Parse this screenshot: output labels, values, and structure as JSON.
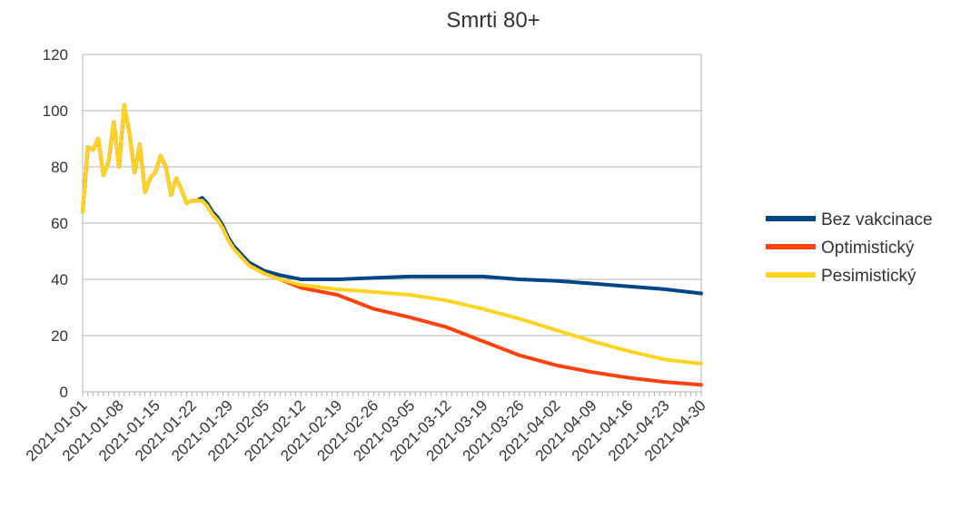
{
  "chart_data": {
    "type": "line",
    "title": "Smrti 80+",
    "xlabel": "",
    "ylabel": "",
    "x_start": "2021-01-01",
    "x_end": "2021-04-30",
    "ylim": [
      0,
      120
    ],
    "yticks": [
      0,
      20,
      40,
      60,
      80,
      100,
      120
    ],
    "xticks": [
      "2021-01-01",
      "2021-01-08",
      "2021-01-15",
      "2021-01-22",
      "2021-01-29",
      "2021-02-05",
      "2021-02-12",
      "2021-02-19",
      "2021-02-26",
      "2021-03-05",
      "2021-03-12",
      "2021-03-19",
      "2021-03-26",
      "2021-04-02",
      "2021-04-09",
      "2021-04-16",
      "2021-04-23",
      "2021-04-30"
    ],
    "grid": true,
    "legend_position": "right",
    "series": [
      {
        "name": "Bez vakcinace",
        "color": "#004586",
        "points": [
          [
            "2021-01-01",
            64
          ],
          [
            "2021-01-02",
            87
          ],
          [
            "2021-01-03",
            86
          ],
          [
            "2021-01-04",
            90
          ],
          [
            "2021-01-05",
            77
          ],
          [
            "2021-01-06",
            82
          ],
          [
            "2021-01-07",
            96
          ],
          [
            "2021-01-08",
            80
          ],
          [
            "2021-01-09",
            102
          ],
          [
            "2021-01-10",
            92
          ],
          [
            "2021-01-11",
            78
          ],
          [
            "2021-01-12",
            88
          ],
          [
            "2021-01-13",
            71
          ],
          [
            "2021-01-14",
            76
          ],
          [
            "2021-01-15",
            78
          ],
          [
            "2021-01-16",
            84
          ],
          [
            "2021-01-17",
            80
          ],
          [
            "2021-01-18",
            70
          ],
          [
            "2021-01-19",
            76
          ],
          [
            "2021-01-20",
            72
          ],
          [
            "2021-01-21",
            67
          ],
          [
            "2021-01-22",
            68
          ],
          [
            "2021-01-23",
            68
          ],
          [
            "2021-01-24",
            69
          ],
          [
            "2021-01-25",
            67
          ],
          [
            "2021-01-26",
            64
          ],
          [
            "2021-01-27",
            62
          ],
          [
            "2021-01-28",
            59
          ],
          [
            "2021-01-29",
            55
          ],
          [
            "2021-01-30",
            52
          ],
          [
            "2021-01-31",
            50
          ],
          [
            "2021-02-01",
            48
          ],
          [
            "2021-02-02",
            46
          ],
          [
            "2021-02-03",
            45
          ],
          [
            "2021-02-05",
            43
          ],
          [
            "2021-02-08",
            41.5
          ],
          [
            "2021-02-12",
            40
          ],
          [
            "2021-02-19",
            40
          ],
          [
            "2021-02-26",
            40.5
          ],
          [
            "2021-03-05",
            41
          ],
          [
            "2021-03-19",
            41
          ],
          [
            "2021-03-26",
            40
          ],
          [
            "2021-04-02",
            39.5
          ],
          [
            "2021-04-09",
            38.5
          ],
          [
            "2021-04-16",
            37.5
          ],
          [
            "2021-04-23",
            36.5
          ],
          [
            "2021-04-30",
            35
          ]
        ]
      },
      {
        "name": "Optimistický",
        "color": "#ff420e",
        "points": [
          [
            "2021-01-01",
            64
          ],
          [
            "2021-01-02",
            87
          ],
          [
            "2021-01-03",
            86
          ],
          [
            "2021-01-04",
            90
          ],
          [
            "2021-01-05",
            77
          ],
          [
            "2021-01-06",
            82
          ],
          [
            "2021-01-07",
            96
          ],
          [
            "2021-01-08",
            80
          ],
          [
            "2021-01-09",
            102
          ],
          [
            "2021-01-10",
            92
          ],
          [
            "2021-01-11",
            78
          ],
          [
            "2021-01-12",
            88
          ],
          [
            "2021-01-13",
            71
          ],
          [
            "2021-01-14",
            76
          ],
          [
            "2021-01-15",
            78
          ],
          [
            "2021-01-16",
            84
          ],
          [
            "2021-01-17",
            80
          ],
          [
            "2021-01-18",
            70
          ],
          [
            "2021-01-19",
            76
          ],
          [
            "2021-01-20",
            72
          ],
          [
            "2021-01-21",
            67
          ],
          [
            "2021-01-22",
            68
          ],
          [
            "2021-01-23",
            68
          ],
          [
            "2021-01-24",
            68
          ],
          [
            "2021-01-25",
            66
          ],
          [
            "2021-01-26",
            63
          ],
          [
            "2021-01-27",
            61
          ],
          [
            "2021-01-28",
            58
          ],
          [
            "2021-01-29",
            54
          ],
          [
            "2021-01-30",
            51
          ],
          [
            "2021-01-31",
            49
          ],
          [
            "2021-02-01",
            47
          ],
          [
            "2021-02-02",
            45
          ],
          [
            "2021-02-03",
            44
          ],
          [
            "2021-02-05",
            42
          ],
          [
            "2021-02-08",
            40
          ],
          [
            "2021-02-12",
            37
          ],
          [
            "2021-02-19",
            34.5
          ],
          [
            "2021-02-26",
            29.5
          ],
          [
            "2021-03-05",
            26.5
          ],
          [
            "2021-03-12",
            23
          ],
          [
            "2021-03-19",
            18
          ],
          [
            "2021-03-26",
            13
          ],
          [
            "2021-04-02",
            9.5
          ],
          [
            "2021-04-09",
            7
          ],
          [
            "2021-04-16",
            5
          ],
          [
            "2021-04-23",
            3.5
          ],
          [
            "2021-04-30",
            2.5
          ]
        ]
      },
      {
        "name": "Pesimistický",
        "color": "#ffd320",
        "points": [
          [
            "2021-01-01",
            64
          ],
          [
            "2021-01-02",
            87
          ],
          [
            "2021-01-03",
            86
          ],
          [
            "2021-01-04",
            90
          ],
          [
            "2021-01-05",
            77
          ],
          [
            "2021-01-06",
            82
          ],
          [
            "2021-01-07",
            96
          ],
          [
            "2021-01-08",
            80
          ],
          [
            "2021-01-09",
            102
          ],
          [
            "2021-01-10",
            92
          ],
          [
            "2021-01-11",
            78
          ],
          [
            "2021-01-12",
            88
          ],
          [
            "2021-01-13",
            71
          ],
          [
            "2021-01-14",
            76
          ],
          [
            "2021-01-15",
            78
          ],
          [
            "2021-01-16",
            84
          ],
          [
            "2021-01-17",
            80
          ],
          [
            "2021-01-18",
            70
          ],
          [
            "2021-01-19",
            76
          ],
          [
            "2021-01-20",
            72
          ],
          [
            "2021-01-21",
            67
          ],
          [
            "2021-01-22",
            68
          ],
          [
            "2021-01-23",
            68
          ],
          [
            "2021-01-24",
            68
          ],
          [
            "2021-01-25",
            66
          ],
          [
            "2021-01-26",
            63
          ],
          [
            "2021-01-27",
            61
          ],
          [
            "2021-01-28",
            58
          ],
          [
            "2021-01-29",
            54
          ],
          [
            "2021-01-30",
            51
          ],
          [
            "2021-01-31",
            49
          ],
          [
            "2021-02-01",
            47
          ],
          [
            "2021-02-02",
            45
          ],
          [
            "2021-02-03",
            44
          ],
          [
            "2021-02-05",
            42
          ],
          [
            "2021-02-08",
            40
          ],
          [
            "2021-02-12",
            38
          ],
          [
            "2021-02-19",
            36.5
          ],
          [
            "2021-02-26",
            35.5
          ],
          [
            "2021-03-05",
            34.5
          ],
          [
            "2021-03-12",
            32.5
          ],
          [
            "2021-03-19",
            29.5
          ],
          [
            "2021-03-26",
            26
          ],
          [
            "2021-04-02",
            22
          ],
          [
            "2021-04-09",
            18
          ],
          [
            "2021-04-16",
            14.5
          ],
          [
            "2021-04-23",
            11.5
          ],
          [
            "2021-04-30",
            10
          ]
        ]
      }
    ]
  }
}
